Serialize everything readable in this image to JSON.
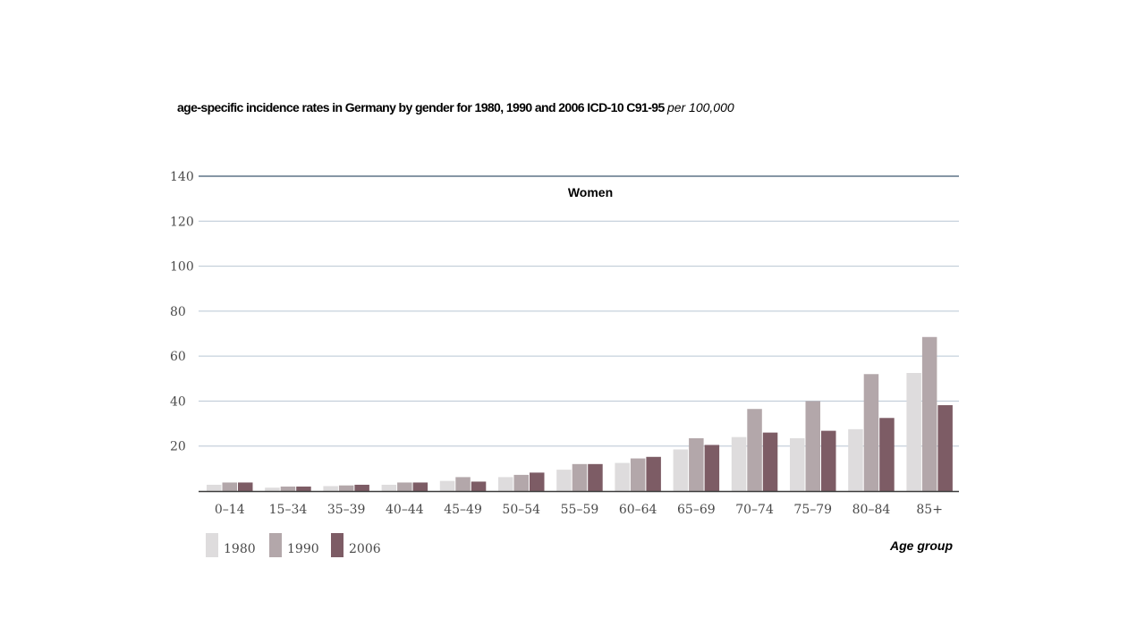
{
  "title": {
    "text": "age-specific incidence rates in Germany by gender for 1980, 1990 and 2006 ICD-10 C91-95",
    "unit": "per 100,000"
  },
  "chart_data": {
    "type": "bar",
    "panel_label": "Women",
    "xlabel": "Age group",
    "ylabel": "",
    "ylim": [
      0,
      140
    ],
    "yticks": [
      20,
      40,
      60,
      80,
      100,
      120,
      140
    ],
    "grid": true,
    "legend_position": "bottom-left",
    "categories": [
      "0–14",
      "15–34",
      "35–39",
      "40–44",
      "45–49",
      "50–54",
      "55–59",
      "60–64",
      "65–69",
      "70–74",
      "75–79",
      "80–84",
      "85+"
    ],
    "series": [
      {
        "name": "1980",
        "color": "#dedcdd",
        "values": [
          2.8,
          1.5,
          2.2,
          2.8,
          4.5,
          6.2,
          9.5,
          12.5,
          18.5,
          24,
          23.5,
          27.5,
          52.5
        ]
      },
      {
        "name": "1990",
        "color": "#b3a7aa",
        "values": [
          3.8,
          2,
          2.5,
          3.8,
          6.2,
          7.2,
          12,
          14.5,
          23.5,
          36.5,
          40,
          52,
          68.5
        ]
      },
      {
        "name": "2006",
        "color": "#7d5c65",
        "values": [
          3.8,
          2,
          2.8,
          3.8,
          4.2,
          8.2,
          12,
          15.2,
          20.5,
          26,
          26.8,
          32.5,
          38.2
        ]
      }
    ]
  }
}
